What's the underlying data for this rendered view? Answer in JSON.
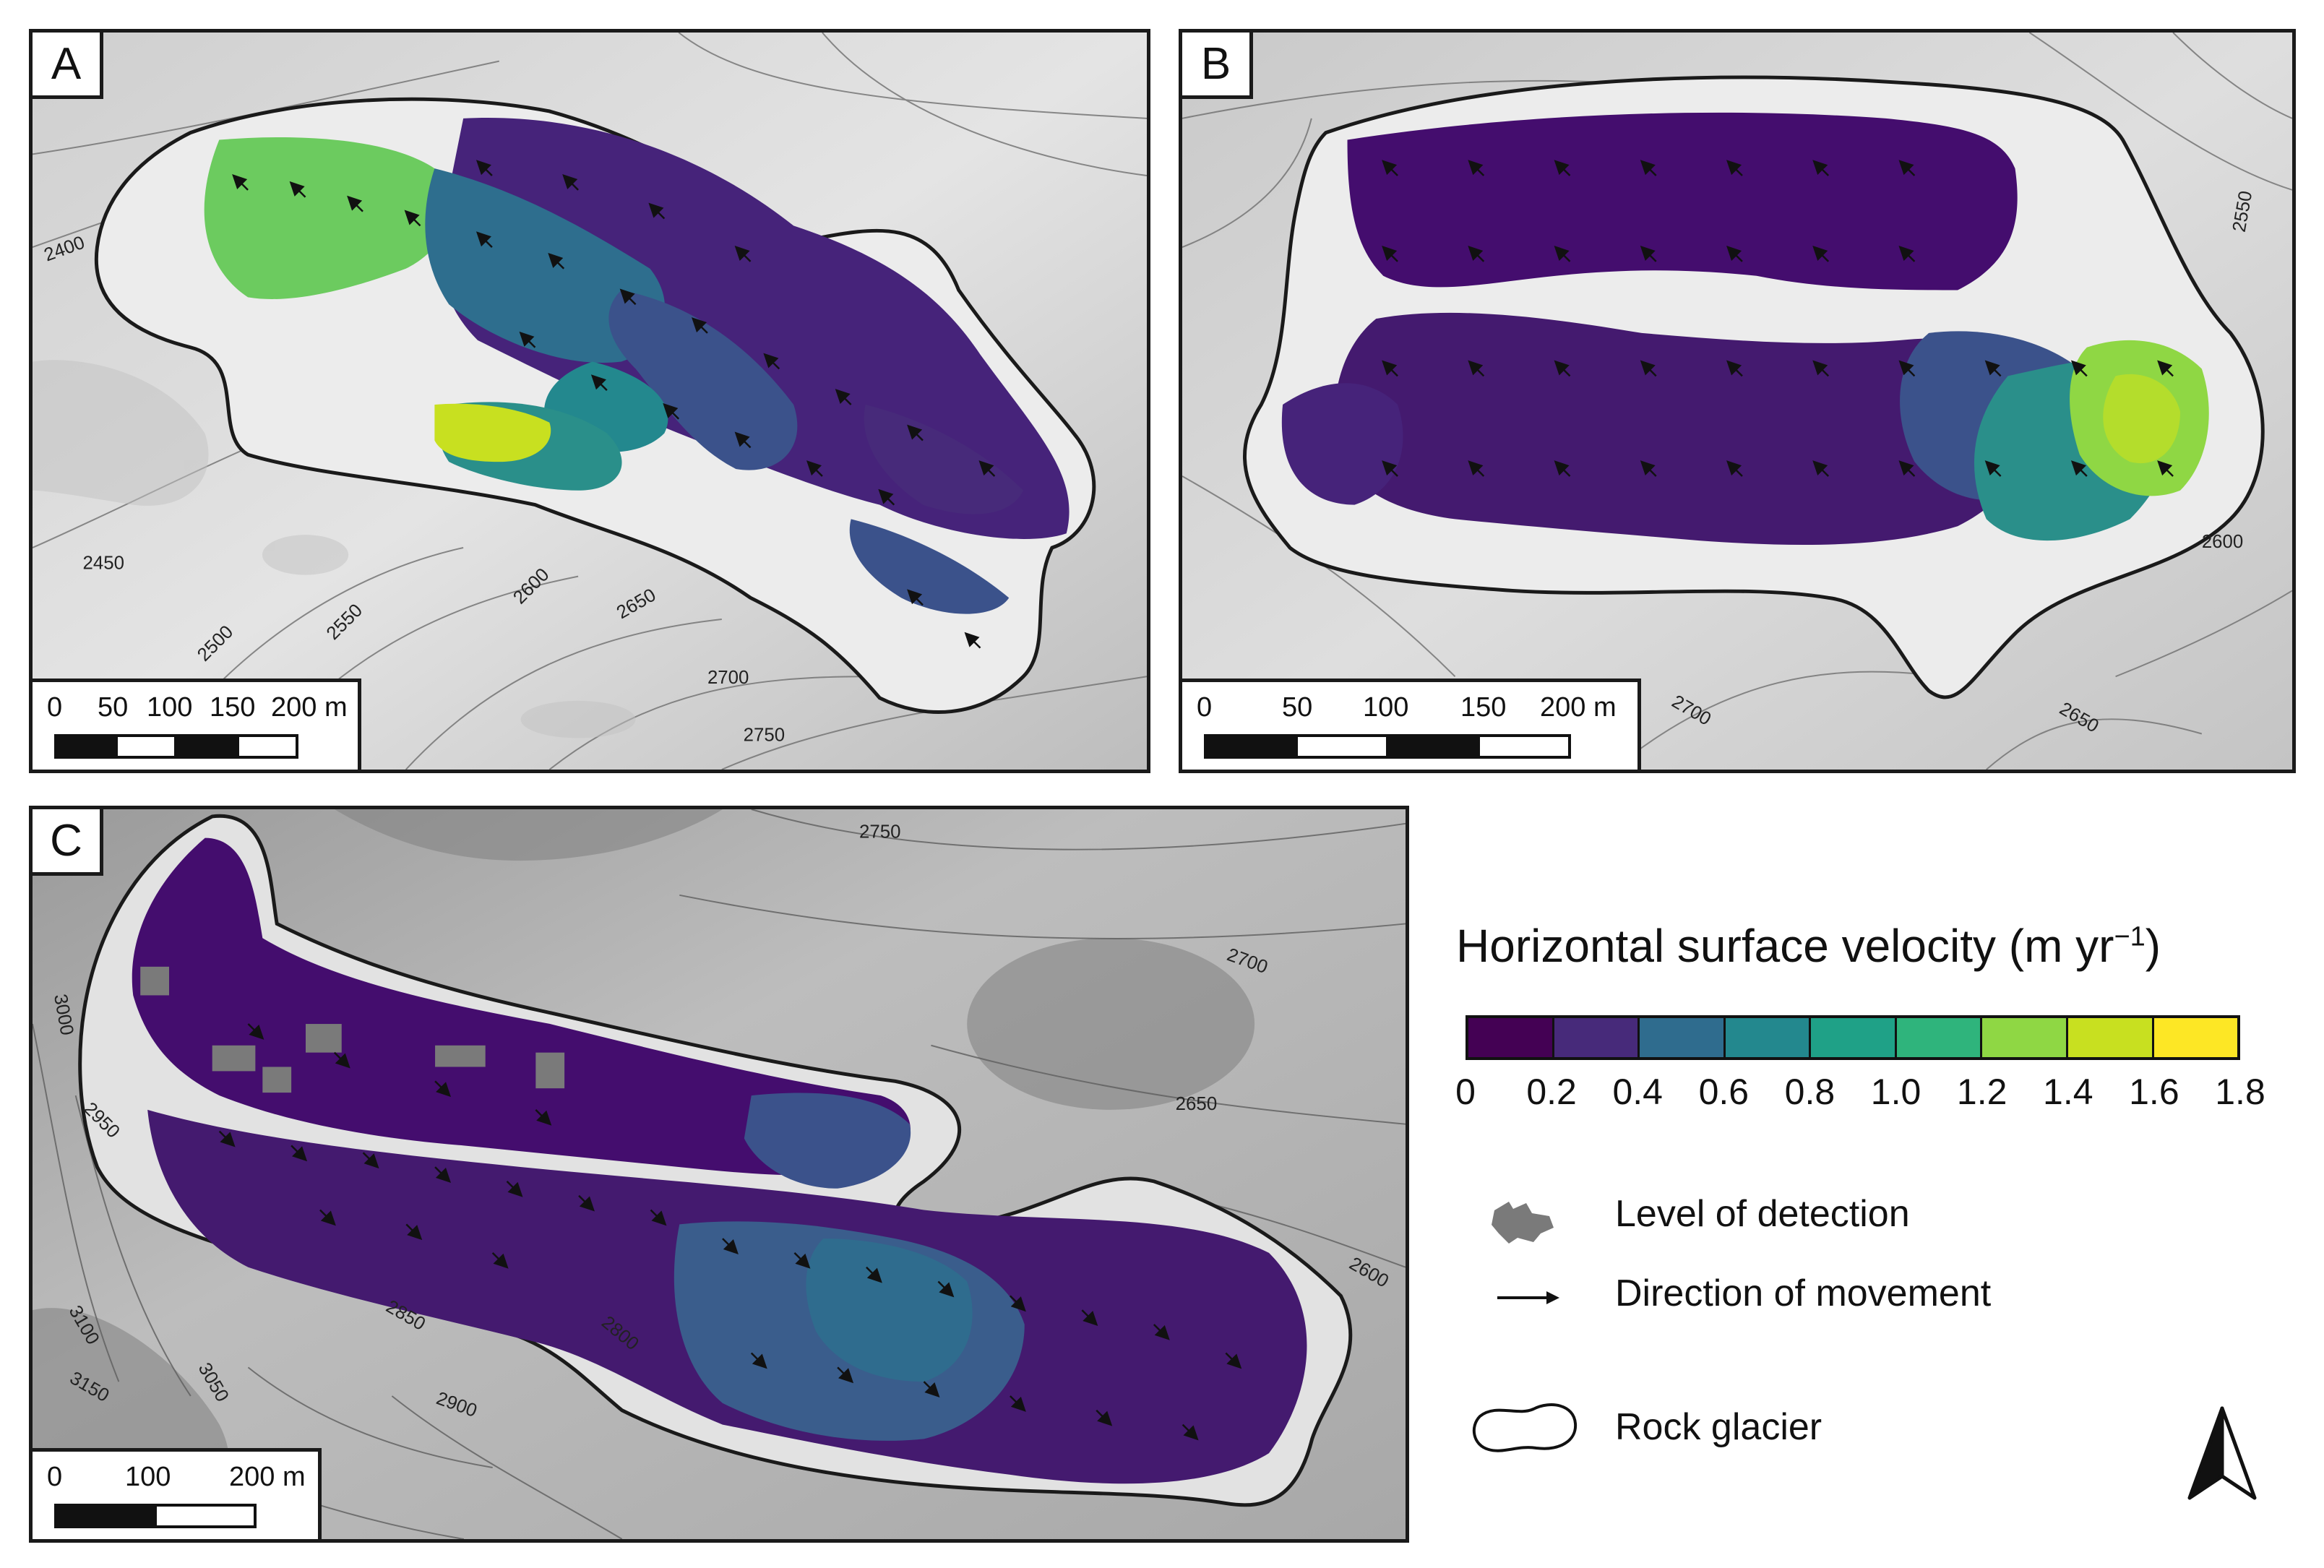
{
  "panels": {
    "a": {
      "label": "A",
      "contours": [
        "2400",
        "2450",
        "2500",
        "2550",
        "2600",
        "2650",
        "2700",
        "2750"
      ],
      "scale": {
        "ticks": [
          "0",
          "50",
          "100",
          "150",
          "200 m"
        ]
      }
    },
    "b": {
      "label": "B",
      "contours": [
        "2550",
        "2600",
        "2650",
        "2700"
      ],
      "scale": {
        "ticks": [
          "0",
          "50",
          "100",
          "150",
          "200 m"
        ]
      }
    },
    "c": {
      "label": "C",
      "contours": [
        "2750",
        "2700",
        "2650",
        "2600",
        "3000",
        "2950",
        "2850",
        "2900",
        "2800",
        "3100",
        "3050",
        "3150"
      ],
      "scale": {
        "ticks": [
          "0",
          "100",
          "200 m"
        ]
      }
    }
  },
  "legend": {
    "title": "Horizontal surface velocity (m yr",
    "title_exponent": "−1",
    "title_close": ")",
    "ticks": [
      "0",
      "0.2",
      "0.4",
      "0.6",
      "0.8",
      "1.0",
      "1.2",
      "1.4",
      "1.6",
      "1.8"
    ],
    "colors": [
      "#440154",
      "#472a7a",
      "#3b528b",
      "#2f6c8e",
      "#23888e",
      "#1fa187",
      "#2fb47c",
      "#5ec962",
      "#8fd744",
      "#c8e020",
      "#fde725"
    ],
    "level_of_detection": "Level of detection",
    "direction_of_movement": "Direction of movement",
    "rock_glacier": "Rock glacier"
  },
  "icons": [
    "north-arrow-icon",
    "arrow-icon",
    "lod-patch-icon",
    "rock-glacier-outline-icon"
  ]
}
